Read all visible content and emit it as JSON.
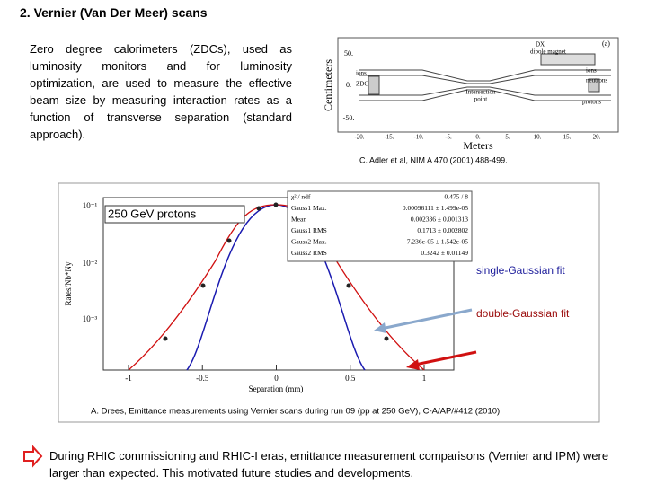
{
  "title": "2. Vernier (Van Der Meer) scans",
  "intro": "Zero degree calorimeters (ZDCs), used as luminosity monitors and for luminosity optimization, are used to measure the effective beam size by measuring interaction rates as a function of transverse separation (standard approach).",
  "diagram": {
    "y_label": "Centimeters",
    "x_label": "Meters",
    "y_ticks": [
      "50.",
      "0.",
      "-50."
    ],
    "x_ticks": [
      "-20.",
      "-15.",
      "-10.",
      "-5.",
      "0.",
      "5.",
      "10.",
      "15.",
      "20."
    ],
    "panel": "(a)",
    "dx": "DX",
    "dipole": "dipole magnet",
    "ions_left": "ions",
    "zdc_left": "ZDC",
    "ip": "Intersection",
    "ip2": "point",
    "ions_right": "ions",
    "neutrons": "neutrons",
    "protons": "protons"
  },
  "caption": "C. Adler et al, NIM A 470 (2001) 488-499.",
  "plot": {
    "y_label": "Rates/Nb*Ny",
    "x_label": "Separation (mm)",
    "y_ticks": [
      "10⁻¹",
      "10⁻²",
      "10⁻³"
    ],
    "x_ticks": [
      "-1",
      "-0.5",
      "0",
      "0.5",
      "1"
    ],
    "beam": "250 GeV protons",
    "stats": [
      [
        "χ² / ndf",
        "0.475 / 8"
      ],
      [
        "Gauss1 Max.",
        "0.00096111 ± 1.499e-05"
      ],
      [
        "Mean",
        "0.002336 ± 0.001313"
      ],
      [
        "Gauss1 RMS",
        "0.1713 ± 0.002802"
      ],
      [
        "Gauss2 Max.",
        "7.236e-05 ± 1.542e-05"
      ],
      [
        "Gauss2 RMS",
        "0.3242 ± 0.01149"
      ]
    ],
    "single": "single-Gaussian fit",
    "double": "double-Gaussian fit",
    "citation": "A. Drees, Emittance measurements using Vernier scans during run 09 (pp at 250 GeV), C-A/AP/#412 (2010)"
  },
  "conclusion": "During RHIC commissioning and RHIC-I eras, emittance measurement comparisons (Vernier and IPM) were larger than expected.  This motivated future studies and developments."
}
